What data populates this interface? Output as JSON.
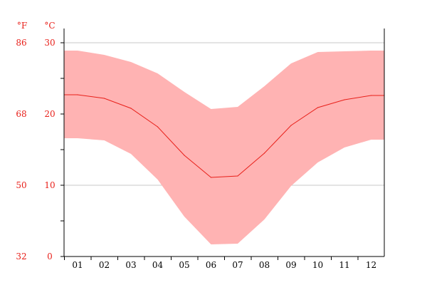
{
  "chart_data": {
    "type": "area",
    "units": {
      "fahrenheit": "°F",
      "celsius": "°C"
    },
    "categories": [
      "01",
      "02",
      "03",
      "04",
      "05",
      "06",
      "07",
      "08",
      "09",
      "10",
      "11",
      "12"
    ],
    "series": [
      {
        "role": "max",
        "values": [
          28.9,
          28.3,
          27.3,
          25.7,
          23.1,
          20.7,
          21.0,
          23.9,
          27.1,
          28.7,
          28.8,
          28.9
        ]
      },
      {
        "role": "mean",
        "values": [
          22.7,
          22.2,
          20.8,
          18.2,
          14.2,
          11.1,
          11.3,
          14.5,
          18.4,
          20.9,
          22.0,
          22.6
        ]
      },
      {
        "role": "min",
        "values": [
          16.6,
          16.3,
          14.4,
          10.8,
          5.6,
          1.7,
          1.8,
          5.2,
          9.9,
          13.2,
          15.3,
          16.4
        ]
      }
    ],
    "y_celsius_ticks": [
      "0",
      "10",
      "20",
      "30"
    ],
    "y_fahrenheit_ticks": [
      "32",
      "50",
      "68",
      "86"
    ],
    "ylim": [
      0,
      32
    ],
    "grid": true,
    "colors": {
      "band": "#ffb3b3",
      "line": "#e8201a",
      "tick_text_y": "#e8201a",
      "tick_text_x": "#000000",
      "grid": "#c8c8c8",
      "axis": "#000000"
    }
  }
}
